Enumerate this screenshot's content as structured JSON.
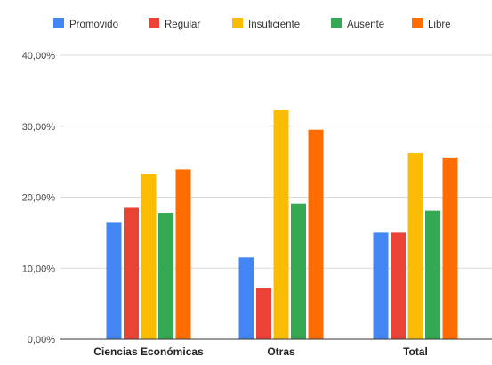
{
  "chart_data": {
    "type": "bar",
    "title": "",
    "xlabel": "",
    "ylabel": "",
    "categories": [
      "Ciencias Económicas",
      "Otras",
      "Total"
    ],
    "series": [
      {
        "name": "Promovido",
        "color": "#4285f4",
        "values": [
          16.5,
          11.5,
          15.0
        ]
      },
      {
        "name": "Regular",
        "color": "#ea4335",
        "values": [
          18.5,
          7.2,
          15.0
        ]
      },
      {
        "name": "Insuficiente",
        "color": "#fbbc04",
        "values": [
          23.3,
          32.3,
          26.2
        ]
      },
      {
        "name": "Ausente",
        "color": "#34a853",
        "values": [
          17.8,
          19.1,
          18.1
        ]
      },
      {
        "name": "Libre",
        "color": "#ff6d01",
        "values": [
          23.9,
          29.5,
          25.6
        ]
      }
    ],
    "ylim": [
      0,
      40
    ],
    "y_ticks": [
      0,
      10,
      20,
      30,
      40
    ],
    "y_tick_labels": [
      "0,00%",
      "10,00%",
      "20,00%",
      "30,00%",
      "40,00%"
    ],
    "grid": true,
    "legend": "top"
  }
}
